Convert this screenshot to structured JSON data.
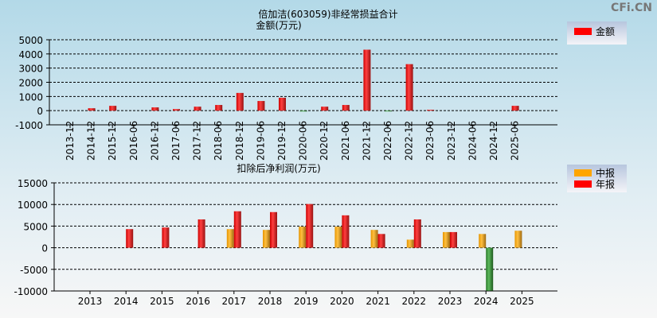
{
  "watermark": "CFi.CN",
  "colors": {
    "annual": "#ff0000",
    "interim": "#ffa500",
    "negative": "#2e8b2e"
  },
  "chart_data": [
    {
      "type": "bar",
      "title": "倍加洁(603059)非经常损益合计",
      "ylabel": "金额(万元)",
      "ylim": [
        -1000,
        5000
      ],
      "yticks": [
        5000,
        4000,
        3000,
        2000,
        1000,
        0,
        -1000
      ],
      "legend": [
        "金额"
      ],
      "legend_placement": "top-right",
      "categories": [
        "2013-12",
        "2014-12",
        "2015-12",
        "2016-06",
        "2016-12",
        "2017-06",
        "2017-12",
        "2018-06",
        "2018-12",
        "2019-06",
        "2019-12",
        "2020-06",
        "2020-12",
        "2021-06",
        "2021-12",
        "2022-06",
        "2022-12",
        "2023-06",
        "2023-12",
        "2024-06",
        "2024-12",
        "2025-06"
      ],
      "values": [
        null,
        170,
        340,
        null,
        230,
        110,
        280,
        400,
        1250,
        680,
        910,
        -60,
        280,
        400,
        4300,
        -50,
        3280,
        60,
        null,
        null,
        null,
        340
      ]
    },
    {
      "type": "bar",
      "title": "扣除后净利润(万元)",
      "ylim": [
        -10000,
        15000
      ],
      "yticks": [
        15000,
        10000,
        5000,
        0,
        -5000,
        -10000
      ],
      "legend": [
        "中报",
        "年报"
      ],
      "legend_placement": "top-right",
      "categories": [
        "2013",
        "2014",
        "2015",
        "2016",
        "2017",
        "2018",
        "2019",
        "2020",
        "2021",
        "2022",
        "2023",
        "2024",
        "2025"
      ],
      "series": [
        {
          "name": "中报",
          "values": [
            null,
            null,
            null,
            null,
            4300,
            4120,
            4870,
            4870,
            4120,
            1870,
            3620,
            3180,
            3930
          ]
        },
        {
          "name": "年报",
          "values": [
            null,
            4300,
            4680,
            6550,
            8430,
            8240,
            10100,
            7490,
            3180,
            6550,
            3620,
            -9930,
            null
          ]
        }
      ]
    }
  ]
}
